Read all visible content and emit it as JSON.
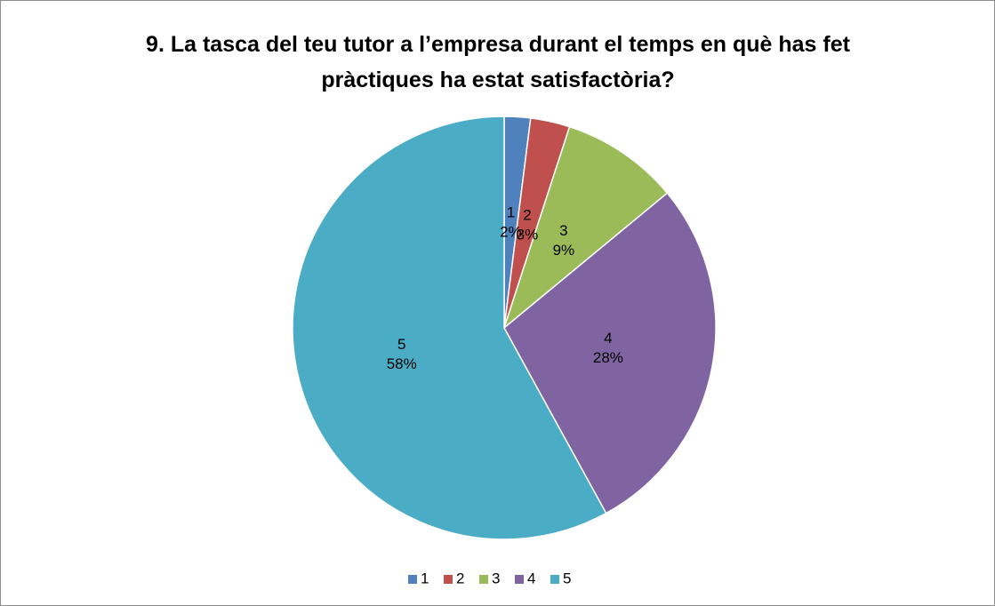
{
  "chart_data": {
    "type": "pie",
    "title": "9. La tasca del teu tutor a l’empresa durant el temps en què has fet pràctiques ha estat satisfactòria?",
    "categories": [
      "1",
      "2",
      "3",
      "4",
      "5"
    ],
    "values": [
      2,
      3,
      9,
      28,
      58
    ],
    "value_labels": [
      "2%",
      "3%",
      "9%",
      "28%",
      "58%"
    ],
    "colors": [
      "#4f81bd",
      "#c0504d",
      "#9bbb59",
      "#8064a2",
      "#4bacc6"
    ],
    "legend": "bottom"
  }
}
